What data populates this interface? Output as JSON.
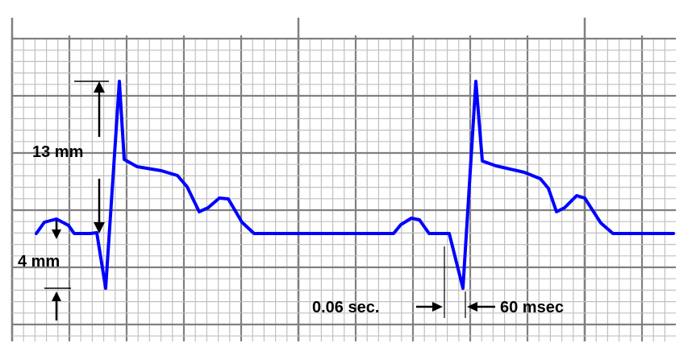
{
  "labels": {
    "amplitude_qrs": "13 mm",
    "amplitude_p": "4 mm",
    "interval_seconds": "0.06 sec.",
    "interval_msec": "60 msec"
  },
  "colors": {
    "trace": "#0000ff",
    "grid_major": "#808080",
    "grid_minor": "#c0c0c0",
    "annotation": "#000000"
  },
  "icons": {
    "arrow": "arrow-icon"
  }
}
